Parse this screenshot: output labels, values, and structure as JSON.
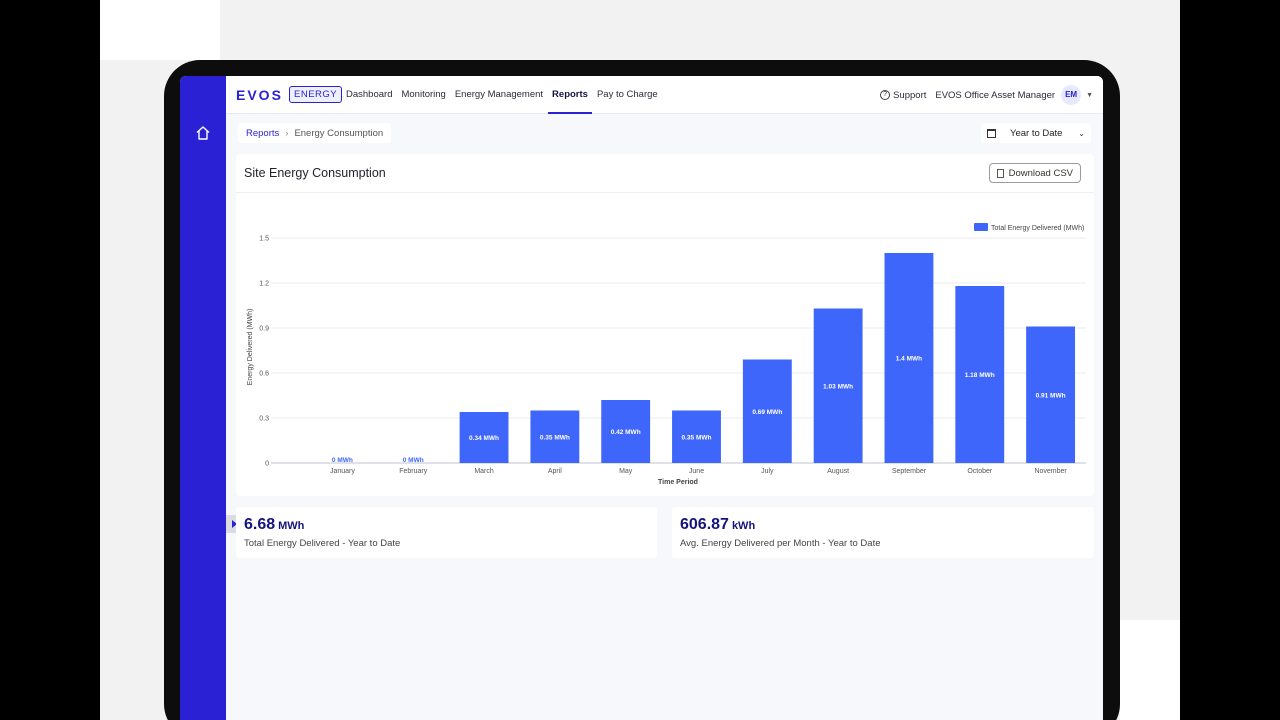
{
  "brand": {
    "name": "EVOS",
    "badge": "ENERGY"
  },
  "nav": [
    {
      "label": "Dashboard",
      "active": false
    },
    {
      "label": "Monitoring",
      "active": false
    },
    {
      "label": "Energy Management",
      "active": false
    },
    {
      "label": "Reports",
      "active": true
    },
    {
      "label": "Pay to Charge",
      "active": false
    }
  ],
  "header": {
    "support": "Support",
    "user_name": "EVOS Office Asset Manager",
    "user_initials": "EM"
  },
  "breadcrumb": {
    "parent": "Reports",
    "current": "Energy Consumption"
  },
  "date_filter": {
    "selected": "Year to Date"
  },
  "card": {
    "title": "Site Energy Consumption",
    "download_label": "Download CSV"
  },
  "stats": [
    {
      "value": "6.68",
      "unit": "MWh",
      "label": "Total Energy Delivered - Year to Date"
    },
    {
      "value": "606.87",
      "unit": "kWh",
      "label": "Avg. Energy Delivered per Month - Year to Date"
    }
  ],
  "colors": {
    "sidebar": "#2a21d4",
    "bar": "#3e66fb",
    "accent": "#2a21d4"
  },
  "chart_data": {
    "type": "bar",
    "categories": [
      "January",
      "February",
      "March",
      "April",
      "May",
      "June",
      "July",
      "August",
      "September",
      "October",
      "November"
    ],
    "series": [
      {
        "name": "Total Energy Delivered (MWh)",
        "values": [
          0,
          0,
          0.34,
          0.35,
          0.42,
          0.35,
          0.69,
          1.03,
          1.4,
          1.18,
          0.91
        ]
      }
    ],
    "data_labels": [
      "0 MWh",
      "0 MWh",
      "0.34 MWh",
      "0.35 MWh",
      "0.42 MWh",
      "0.35 MWh",
      "0.69 MWh",
      "1.03 MWh",
      "1.4 MWh",
      "1.18 MWh",
      "0.91 MWh"
    ],
    "xlabel": "Time Period",
    "ylabel": "Energy Delivered (MWh)",
    "ylim": [
      0,
      1.5
    ],
    "yticks": [
      "0",
      "0.3",
      "0.6",
      "0.9",
      "1.2",
      "1.5"
    ],
    "grid": true,
    "legend": "top-right"
  }
}
